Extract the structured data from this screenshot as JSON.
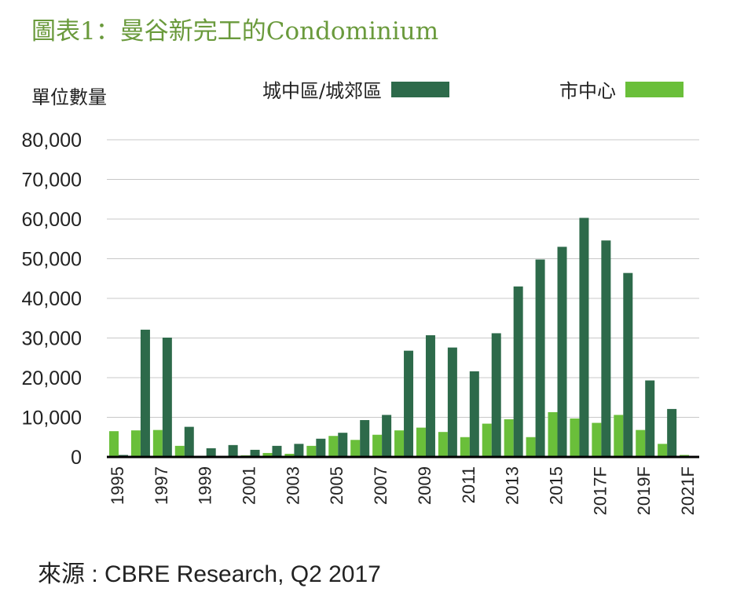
{
  "chart_data": {
    "type": "bar",
    "title": "圖表1：曼谷新完工的Condominium",
    "ylabel": "單位數量",
    "source": "來源 : CBRE Research, Q2 2017",
    "ylim": [
      0,
      80000
    ],
    "yticks": [
      0,
      10000,
      20000,
      30000,
      40000,
      50000,
      60000,
      70000,
      80000
    ],
    "ytick_labels": [
      "0",
      "10,000",
      "20,000",
      "30,000",
      "40,000",
      "50,000",
      "60,000",
      "70,000",
      "80,000"
    ],
    "grid": true,
    "legend_position": "top",
    "categories": [
      "1995",
      "1996",
      "1997",
      "1998",
      "1999",
      "2000",
      "2001",
      "2002",
      "2003",
      "2004",
      "2005",
      "2006",
      "2007",
      "2008",
      "2009",
      "2010",
      "2011",
      "2012",
      "2013",
      "2014",
      "2015",
      "2016",
      "2017F",
      "2018F",
      "2019F",
      "2020F",
      "2021F"
    ],
    "x_tick_labels": [
      "1995",
      "",
      "1997",
      "",
      "1999",
      "",
      "2001",
      "",
      "2003",
      "",
      "2005",
      "",
      "2007",
      "",
      "2009",
      "",
      "2011",
      "",
      "2013",
      "",
      "2015",
      "",
      "2017F",
      "",
      "2019F",
      "",
      "2021F"
    ],
    "series": [
      {
        "name": "市中心",
        "color": "#6abf3a",
        "values": [
          6500,
          6700,
          6800,
          2800,
          200,
          300,
          400,
          1000,
          800,
          2800,
          5300,
          4300,
          5600,
          6700,
          7400,
          6300,
          5000,
          8400,
          9500,
          5000,
          11300,
          9700,
          8600,
          10600,
          6800,
          3300,
          500
        ]
      },
      {
        "name": "城中區/城郊區",
        "color": "#2d6a4a",
        "values": [
          500,
          32100,
          30100,
          7600,
          2200,
          3000,
          1800,
          2800,
          3300,
          4600,
          6100,
          9300,
          10600,
          26800,
          30700,
          27600,
          21600,
          31200,
          43000,
          49800,
          53000,
          60300,
          54600,
          46400,
          19300,
          12100,
          0
        ]
      }
    ]
  }
}
